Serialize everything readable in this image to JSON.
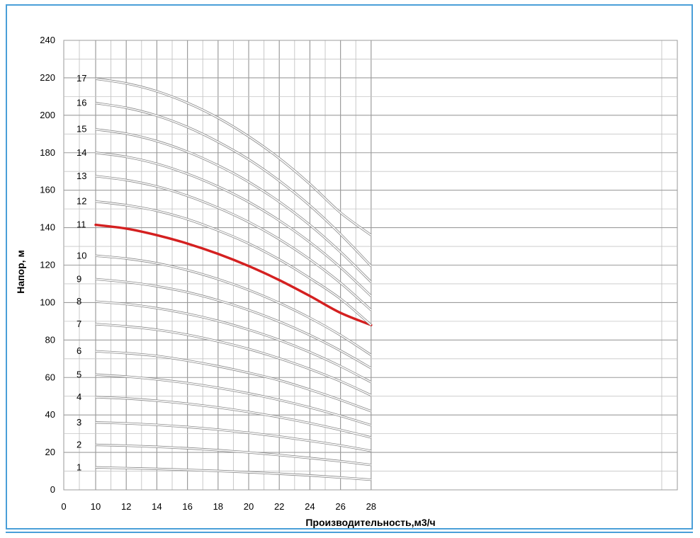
{
  "chart_data": {
    "type": "line",
    "xlabel": "Производительность,м3/ч",
    "ylabel": "Напор, м",
    "xlim": [
      0,
      28
    ],
    "ylim": [
      0,
      240
    ],
    "x_origin_label": "0",
    "x_ticks": [
      10,
      12,
      14,
      16,
      18,
      20,
      22,
      24,
      26,
      28
    ],
    "y_ticks": [
      0,
      20,
      40,
      60,
      80,
      100,
      120,
      140,
      160,
      180,
      200,
      220,
      240
    ],
    "grid": true,
    "highlight_color": "#d42020",
    "curve_color": "#b4b4b4",
    "x": [
      10,
      12,
      14,
      16,
      18,
      20,
      22,
      24,
      26,
      28
    ],
    "series": [
      {
        "name": "1",
        "values": [
          12,
          11.6,
          11.2,
          10.7,
          10.1,
          9.4,
          8.6,
          7.7,
          6.6,
          5.4
        ]
      },
      {
        "name": "2",
        "values": [
          24,
          23.6,
          23,
          22.2,
          21.2,
          20,
          18.6,
          17,
          15.3,
          13.3
        ]
      },
      {
        "name": "3",
        "values": [
          36,
          35.5,
          34.7,
          33.6,
          32.2,
          30.5,
          28.5,
          26.2,
          23.7,
          20.8
        ]
      },
      {
        "name": "4",
        "values": [
          49.5,
          48.8,
          47.6,
          46,
          44,
          41.6,
          38.8,
          35.6,
          32,
          28
        ]
      },
      {
        "name": "5",
        "values": [
          61.5,
          60.5,
          59,
          57,
          54.5,
          51.5,
          48,
          44,
          39.5,
          34.5
        ]
      },
      {
        "name": "6",
        "values": [
          74,
          73,
          71.5,
          69,
          66,
          62.5,
          58.5,
          53.5,
          48,
          42
        ]
      },
      {
        "name": "7",
        "values": [
          88.5,
          87.3,
          85.5,
          82.8,
          79.3,
          75.2,
          70.2,
          64.5,
          58,
          50.5
        ]
      },
      {
        "name": "8",
        "values": [
          100.5,
          99.2,
          97,
          94,
          90.2,
          85.5,
          80,
          73.5,
          66,
          57.5
        ]
      },
      {
        "name": "9",
        "values": [
          112.5,
          111,
          108.7,
          105.5,
          101.2,
          96,
          89.8,
          82.6,
          74.3,
          65
        ]
      },
      {
        "name": "10",
        "values": [
          125,
          123.5,
          121,
          117.3,
          112.5,
          106.7,
          99.8,
          91.8,
          82.6,
          72
        ]
      },
      {
        "name": "11",
        "values": [
          141.5,
          139.5,
          136,
          131.5,
          126,
          119.5,
          112,
          103.5,
          94.5,
          88
        ]
      },
      {
        "name": "12",
        "values": [
          154,
          152,
          149,
          144.5,
          138.5,
          131.5,
          123,
          113,
          102,
          88
        ]
      },
      {
        "name": "13",
        "values": [
          167.5,
          165.4,
          162,
          157,
          150.6,
          143,
          133.8,
          123,
          110.5,
          96
        ]
      },
      {
        "name": "14",
        "values": [
          180,
          177.8,
          174.1,
          168.7,
          161.9,
          153.7,
          143.8,
          132.2,
          118.8,
          103.5
        ]
      },
      {
        "name": "15",
        "values": [
          192.5,
          190.2,
          186.2,
          180.5,
          173.2,
          164.4,
          153.8,
          141.4,
          127,
          111
        ]
      },
      {
        "name": "16",
        "values": [
          206.5,
          204,
          199.8,
          193.7,
          185.8,
          176.4,
          165,
          151.8,
          136.5,
          119.5
        ]
      },
      {
        "name": "17",
        "values": [
          219.5,
          217,
          212.8,
          206.6,
          198.6,
          188.7,
          177,
          163.3,
          148,
          136
        ]
      }
    ],
    "highlighted_series": "11"
  }
}
